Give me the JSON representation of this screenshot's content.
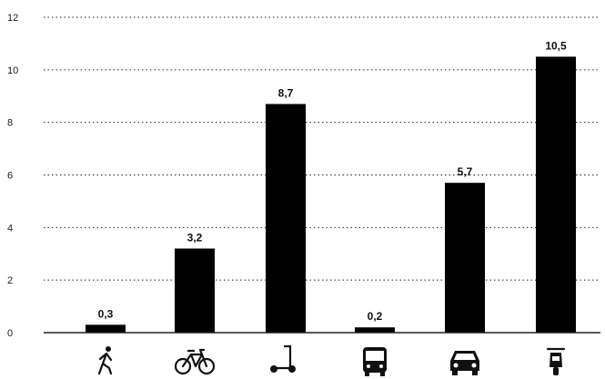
{
  "chart_data": {
    "type": "bar",
    "title": "",
    "xlabel": "",
    "ylabel": "",
    "ylim": [
      0,
      12
    ],
    "yticks": [
      0,
      2,
      4,
      6,
      8,
      10,
      12
    ],
    "grid": true,
    "categories": [
      "walk-icon",
      "bicycle-icon",
      "scooter-icon",
      "bus-icon",
      "car-icon",
      "moped-icon"
    ],
    "values": [
      0.3,
      3.2,
      8.7,
      0.2,
      5.7,
      10.5
    ],
    "value_labels": [
      "0,3",
      "3,2",
      "8,7",
      "0,2",
      "5,7",
      "10,5"
    ],
    "bar_color": "#000000"
  }
}
